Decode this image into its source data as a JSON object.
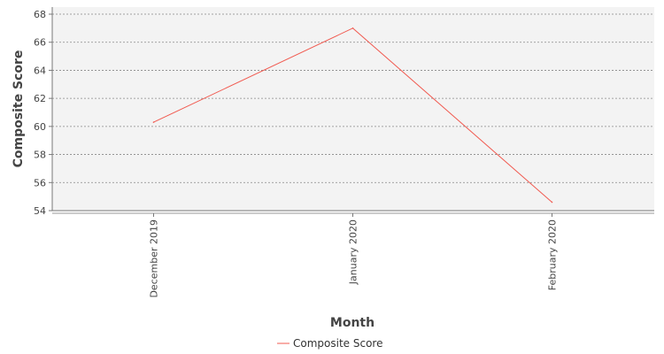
{
  "chart_data": {
    "type": "line",
    "title": "",
    "xlabel": "Month",
    "ylabel": "Composite Score",
    "categories": [
      "December 2019",
      "January 2020",
      "February 2020"
    ],
    "series": [
      {
        "name": "Composite Score",
        "values": [
          60.3,
          67.0,
          54.6
        ],
        "color": "#f15b51"
      }
    ],
    "ylim": [
      54,
      68
    ],
    "yticks": [
      54,
      56,
      58,
      60,
      62,
      64,
      66,
      68
    ],
    "grid": true,
    "legend_position": "bottom-center",
    "plot_background": "#f3f3f3"
  }
}
